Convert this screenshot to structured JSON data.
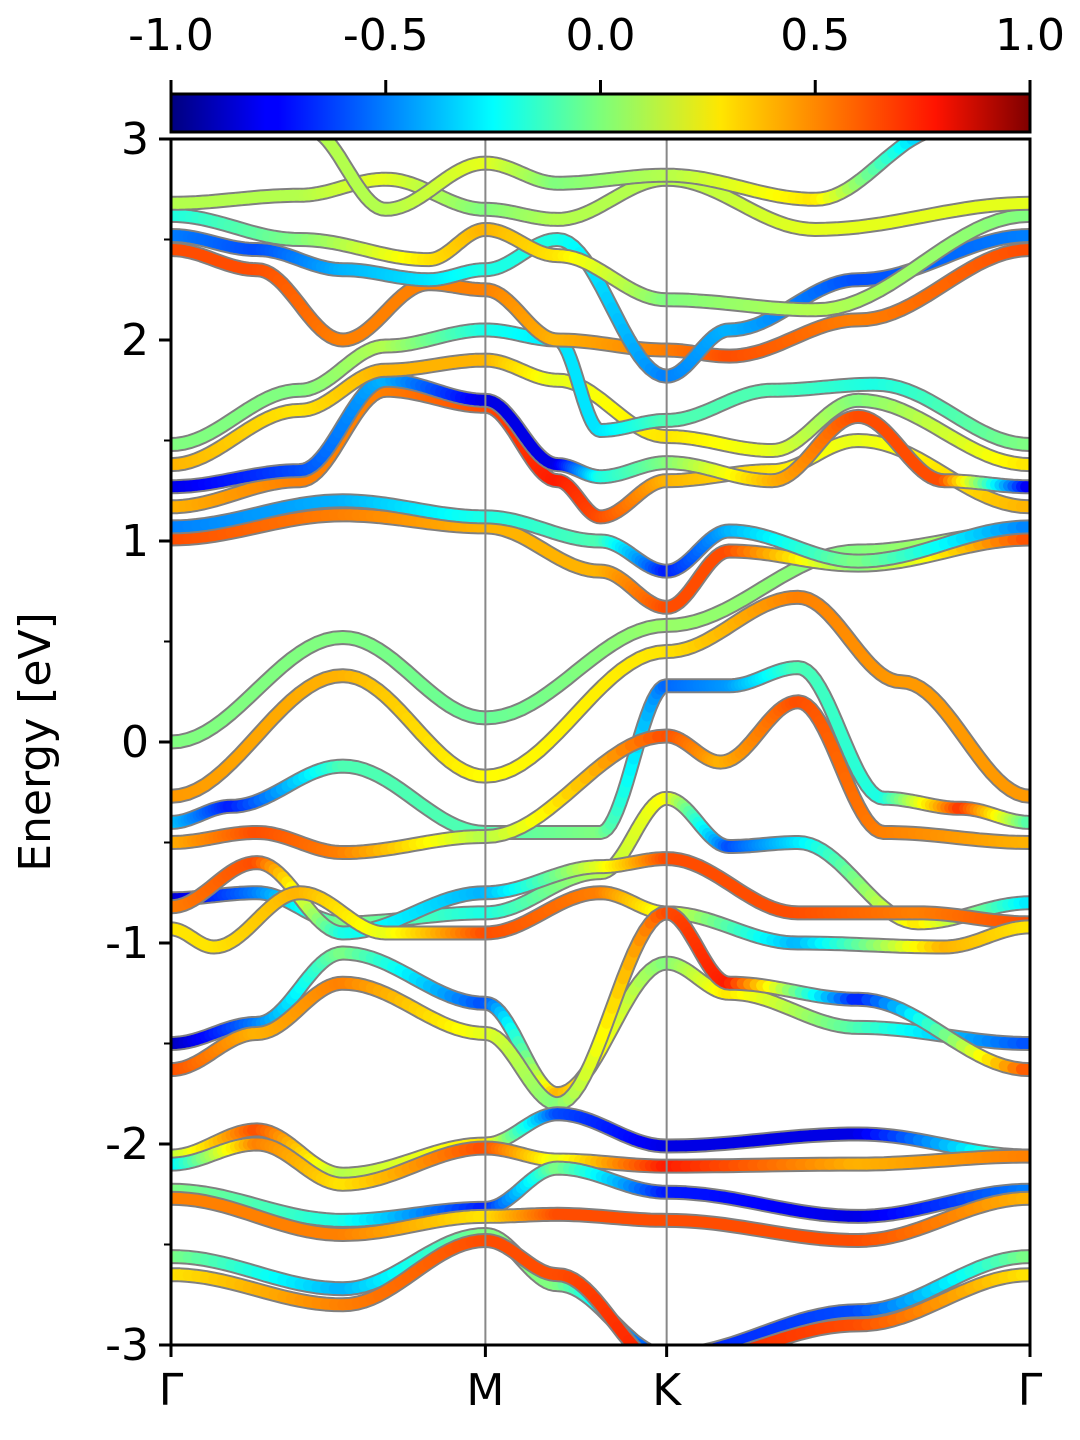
{
  "chart_data": {
    "type": "line",
    "title": "",
    "xlabel": "",
    "ylabel": "Energy [eV]",
    "ylim": [
      -3,
      3
    ],
    "yticks": [
      "-3",
      "-2",
      "-1",
      "0",
      "1",
      "2",
      "3"
    ],
    "xticks": [
      {
        "label": "Γ",
        "x": 0.0
      },
      {
        "label": "M",
        "x": 0.366
      },
      {
        "label": "K",
        "x": 0.577
      },
      {
        "label": "Γ",
        "x": 1.0
      }
    ],
    "vlines_at": [
      0.366,
      0.577
    ],
    "colorbar": {
      "colormap": "jet",
      "range": [
        -1.0,
        1.0
      ],
      "ticks": [
        "-1.0",
        "-0.5",
        "0.0",
        "0.5",
        "1.0"
      ]
    },
    "series": [
      {
        "points": [
          [
            0,
            -0.0,
            0.0
          ],
          [
            0.2,
            0.52,
            0.0
          ],
          [
            0.366,
            0.12,
            -0.05
          ],
          [
            0.577,
            0.58,
            0.05
          ],
          [
            0.8,
            0.95,
            0.0
          ],
          [
            1,
            1.05,
            0.15
          ]
        ]
      },
      {
        "points": [
          [
            0,
            -0.27,
            0.45
          ],
          [
            0.2,
            0.33,
            0.4
          ],
          [
            0.366,
            -0.17,
            0.25
          ],
          [
            0.577,
            0.45,
            0.3
          ],
          [
            0.73,
            0.72,
            0.5
          ],
          [
            0.85,
            0.3,
            0.45
          ],
          [
            1,
            -0.27,
            0.45
          ]
        ]
      },
      {
        "points": [
          [
            0,
            -0.4,
            -0.35
          ],
          [
            0.07,
            -0.32,
            -0.7
          ],
          [
            0.2,
            -0.12,
            -0.1
          ],
          [
            0.366,
            -0.45,
            -0.1
          ],
          [
            0.5,
            -0.45,
            0.0
          ],
          [
            0.577,
            0.28,
            -0.55
          ],
          [
            0.65,
            0.28,
            -0.45
          ],
          [
            0.73,
            0.37,
            -0.1
          ],
          [
            0.83,
            -0.28,
            -0.2
          ],
          [
            0.92,
            -0.33,
            0.65
          ],
          [
            1,
            -0.4,
            -0.1
          ]
        ]
      },
      {
        "points": [
          [
            0,
            -0.5,
            0.4
          ],
          [
            0.1,
            -0.45,
            0.6
          ],
          [
            0.2,
            -0.55,
            0.5
          ],
          [
            0.366,
            -0.47,
            0.1
          ],
          [
            0.577,
            0.03,
            0.6
          ],
          [
            0.64,
            -0.1,
            0.4
          ],
          [
            0.73,
            0.2,
            0.6
          ],
          [
            0.83,
            -0.45,
            0.5
          ],
          [
            1,
            -0.5,
            0.4
          ]
        ]
      },
      {
        "points": [
          [
            0,
            -0.78,
            -0.85
          ],
          [
            0.1,
            -0.75,
            -0.5
          ],
          [
            0.2,
            -0.9,
            0.0
          ],
          [
            0.366,
            -0.85,
            -0.2
          ],
          [
            0.5,
            -0.65,
            0.1
          ],
          [
            0.577,
            -0.28,
            0.25
          ],
          [
            0.65,
            -0.52,
            -0.6
          ],
          [
            0.73,
            -0.5,
            -0.3
          ],
          [
            0.87,
            -0.9,
            0.3
          ],
          [
            1,
            -0.8,
            -0.3
          ]
        ]
      },
      {
        "points": [
          [
            0,
            -0.82,
            0.5
          ],
          [
            0.1,
            -0.6,
            0.6
          ],
          [
            0.2,
            -0.95,
            -0.2
          ],
          [
            0.366,
            -0.75,
            -0.4
          ],
          [
            0.5,
            -0.62,
            0.2
          ],
          [
            0.577,
            -0.58,
            0.6
          ],
          [
            0.73,
            -0.85,
            0.6
          ],
          [
            0.87,
            -0.85,
            0.5
          ],
          [
            1,
            -0.9,
            0.6
          ]
        ]
      },
      {
        "points": [
          [
            0,
            -0.93,
            0.3
          ],
          [
            0.05,
            -1.02,
            0.3
          ],
          [
            0.15,
            -0.75,
            0.4
          ],
          [
            0.25,
            -0.95,
            0.2
          ],
          [
            0.366,
            -0.95,
            0.6
          ],
          [
            0.5,
            -0.75,
            0.5
          ],
          [
            0.577,
            -0.85,
            0.2
          ],
          [
            0.73,
            -1.0,
            -0.4
          ],
          [
            0.9,
            -1.02,
            0.4
          ],
          [
            1,
            -0.92,
            0.3
          ]
        ]
      },
      {
        "points": [
          [
            0,
            -1.5,
            -0.9
          ],
          [
            0.1,
            -1.4,
            -0.5
          ],
          [
            0.2,
            -1.05,
            0.0
          ],
          [
            0.366,
            -1.3,
            -0.6
          ],
          [
            0.45,
            -1.75,
            0.4
          ],
          [
            0.577,
            -1.1,
            0.0
          ],
          [
            0.65,
            -1.25,
            0.3
          ],
          [
            0.8,
            -1.42,
            -0.1
          ],
          [
            1,
            -1.5,
            -0.6
          ]
        ]
      },
      {
        "points": [
          [
            0,
            -1.63,
            0.6
          ],
          [
            0.1,
            -1.45,
            0.4
          ],
          [
            0.2,
            -1.2,
            0.5
          ],
          [
            0.366,
            -1.45,
            0.2
          ],
          [
            0.45,
            -1.8,
            0.0
          ],
          [
            0.577,
            -0.85,
            0.6
          ],
          [
            0.65,
            -1.2,
            0.7
          ],
          [
            0.8,
            -1.28,
            -0.7
          ],
          [
            1,
            -1.63,
            0.6
          ]
        ]
      },
      {
        "points": [
          [
            0,
            -2.06,
            0.1
          ],
          [
            0.1,
            -1.93,
            0.6
          ],
          [
            0.2,
            -2.15,
            0.1
          ],
          [
            0.366,
            -2.0,
            0.3
          ],
          [
            0.45,
            -1.85,
            -0.6
          ],
          [
            0.577,
            -2.01,
            -0.8
          ],
          [
            0.8,
            -1.95,
            -0.8
          ],
          [
            1,
            -2.06,
            0.0
          ]
        ]
      },
      {
        "points": [
          [
            0,
            -2.1,
            -0.3
          ],
          [
            0.1,
            -2.0,
            0.5
          ],
          [
            0.2,
            -2.2,
            0.3
          ],
          [
            0.366,
            -2.02,
            0.6
          ],
          [
            0.45,
            -2.08,
            0.2
          ],
          [
            0.577,
            -2.11,
            0.7
          ],
          [
            0.8,
            -2.1,
            0.4
          ],
          [
            1,
            -2.06,
            0.5
          ]
        ]
      },
      {
        "points": [
          [
            0,
            -2.23,
            0.0
          ],
          [
            0.2,
            -2.38,
            -0.2
          ],
          [
            0.366,
            -2.32,
            -0.7
          ],
          [
            0.45,
            -2.12,
            0.0
          ],
          [
            0.577,
            -2.24,
            -0.7
          ],
          [
            0.8,
            -2.36,
            -0.8
          ],
          [
            1,
            -2.23,
            -0.5
          ]
        ]
      },
      {
        "points": [
          [
            0,
            -2.27,
            0.5
          ],
          [
            0.2,
            -2.45,
            0.5
          ],
          [
            0.366,
            -2.36,
            0.3
          ],
          [
            0.45,
            -2.35,
            0.6
          ],
          [
            0.577,
            -2.38,
            0.6
          ],
          [
            0.8,
            -2.48,
            0.6
          ],
          [
            1,
            -2.27,
            0.4
          ]
        ]
      },
      {
        "points": [
          [
            0,
            -2.56,
            0.0
          ],
          [
            0.2,
            -2.72,
            -0.4
          ],
          [
            0.366,
            -2.45,
            0.0
          ],
          [
            0.45,
            -2.7,
            0.0
          ],
          [
            0.577,
            -3.05,
            -0.7
          ],
          [
            0.8,
            -2.83,
            -0.6
          ],
          [
            1,
            -2.56,
            0.0
          ]
        ]
      },
      {
        "points": [
          [
            0,
            -2.65,
            0.3
          ],
          [
            0.2,
            -2.8,
            0.5
          ],
          [
            0.366,
            -2.48,
            0.6
          ],
          [
            0.45,
            -2.65,
            0.6
          ],
          [
            0.577,
            -3.1,
            0.7
          ],
          [
            0.8,
            -2.9,
            0.6
          ],
          [
            1,
            -2.65,
            0.3
          ]
        ]
      },
      {
        "points": [
          [
            0,
            1.01,
            0.6
          ],
          [
            0.2,
            1.13,
            0.5
          ],
          [
            0.366,
            1.07,
            0.4
          ],
          [
            0.5,
            0.85,
            0.4
          ],
          [
            0.577,
            0.67,
            0.6
          ],
          [
            0.65,
            0.95,
            0.6
          ],
          [
            0.8,
            0.88,
            0.0
          ],
          [
            1,
            1.01,
            0.6
          ]
        ]
      },
      {
        "points": [
          [
            0,
            1.07,
            -0.5
          ],
          [
            0.2,
            1.2,
            -0.4
          ],
          [
            0.366,
            1.12,
            -0.2
          ],
          [
            0.5,
            1.0,
            -0.1
          ],
          [
            0.577,
            0.85,
            -0.7
          ],
          [
            0.65,
            1.05,
            -0.4
          ],
          [
            0.8,
            0.9,
            0.0
          ],
          [
            1,
            1.07,
            -0.5
          ]
        ]
      },
      {
        "points": [
          [
            0,
            1.17,
            0.4
          ],
          [
            0.15,
            1.3,
            0.5
          ],
          [
            0.25,
            1.75,
            0.5
          ],
          [
            0.366,
            1.67,
            0.6
          ],
          [
            0.45,
            1.3,
            0.7
          ],
          [
            0.5,
            1.12,
            0.6
          ],
          [
            0.577,
            1.3,
            0.4
          ],
          [
            0.7,
            1.35,
            0.3
          ],
          [
            0.8,
            1.5,
            0.2
          ],
          [
            1,
            1.17,
            0.4
          ]
        ]
      },
      {
        "points": [
          [
            0,
            1.27,
            -0.8
          ],
          [
            0.15,
            1.35,
            -0.6
          ],
          [
            0.25,
            1.8,
            -0.4
          ],
          [
            0.366,
            1.7,
            -0.8
          ],
          [
            0.45,
            1.38,
            -0.8
          ],
          [
            0.5,
            1.32,
            -0.2
          ],
          [
            0.577,
            1.39,
            0.0
          ],
          [
            0.7,
            1.3,
            0.4
          ],
          [
            0.8,
            1.62,
            0.6
          ],
          [
            0.9,
            1.3,
            0.6
          ],
          [
            1,
            1.27,
            -0.8
          ]
        ]
      },
      {
        "points": [
          [
            0,
            1.38,
            0.4
          ],
          [
            0.15,
            1.65,
            0.3
          ],
          [
            0.25,
            1.85,
            0.4
          ],
          [
            0.366,
            1.9,
            0.4
          ],
          [
            0.45,
            1.8,
            0.2
          ],
          [
            0.577,
            1.52,
            0.3
          ],
          [
            0.7,
            1.45,
            0.2
          ],
          [
            0.8,
            1.7,
            0.0
          ],
          [
            1,
            1.38,
            0.3
          ]
        ]
      },
      {
        "points": [
          [
            0,
            1.48,
            0.0
          ],
          [
            0.15,
            1.75,
            0.0
          ],
          [
            0.25,
            1.97,
            0.1
          ],
          [
            0.366,
            2.05,
            -0.2
          ],
          [
            0.45,
            2.0,
            -0.3
          ],
          [
            0.5,
            1.55,
            -0.3
          ],
          [
            0.577,
            1.6,
            -0.1
          ],
          [
            0.7,
            1.75,
            -0.1
          ],
          [
            0.82,
            1.78,
            -0.2
          ],
          [
            1,
            1.48,
            0.0
          ]
        ]
      },
      {
        "points": [
          [
            0,
            2.45,
            0.6
          ],
          [
            0.1,
            2.35,
            0.6
          ],
          [
            0.2,
            2.0,
            0.5
          ],
          [
            0.3,
            2.28,
            0.5
          ],
          [
            0.366,
            2.25,
            0.5
          ],
          [
            0.45,
            2.0,
            0.4
          ],
          [
            0.577,
            1.95,
            0.5
          ],
          [
            0.65,
            1.92,
            0.6
          ],
          [
            0.8,
            2.1,
            0.5
          ],
          [
            1,
            2.45,
            0.6
          ]
        ]
      },
      {
        "points": [
          [
            0,
            2.52,
            -0.5
          ],
          [
            0.1,
            2.45,
            -0.6
          ],
          [
            0.2,
            2.35,
            -0.4
          ],
          [
            0.3,
            2.3,
            -0.3
          ],
          [
            0.366,
            2.35,
            -0.2
          ],
          [
            0.45,
            2.5,
            -0.2
          ],
          [
            0.577,
            1.82,
            -0.5
          ],
          [
            0.65,
            2.05,
            -0.4
          ],
          [
            0.8,
            2.3,
            -0.6
          ],
          [
            1,
            2.52,
            -0.5
          ]
        ]
      },
      {
        "points": [
          [
            0,
            2.62,
            -0.2
          ],
          [
            0.15,
            2.5,
            0.0
          ],
          [
            0.3,
            2.4,
            0.3
          ],
          [
            0.366,
            2.55,
            0.4
          ],
          [
            0.45,
            2.42,
            0.3
          ],
          [
            0.577,
            2.2,
            0.0
          ],
          [
            0.75,
            2.15,
            0.1
          ],
          [
            1,
            2.62,
            0.0
          ]
        ]
      },
      {
        "points": [
          [
            0,
            2.68,
            0.1
          ],
          [
            0.15,
            2.72,
            0.1
          ],
          [
            0.25,
            2.8,
            0.2
          ],
          [
            0.366,
            2.65,
            0.0
          ],
          [
            0.45,
            2.6,
            0.1
          ],
          [
            0.577,
            2.8,
            0.1
          ],
          [
            0.75,
            2.55,
            0.2
          ],
          [
            1,
            2.68,
            0.2
          ]
        ]
      },
      {
        "points": [
          [
            0.16,
            3.05,
            0.1
          ],
          [
            0.25,
            2.65,
            0.1
          ],
          [
            0.366,
            2.88,
            0.2
          ],
          [
            0.45,
            2.78,
            0.0
          ],
          [
            0.577,
            2.82,
            0.1
          ],
          [
            0.75,
            2.7,
            0.3
          ],
          [
            0.9,
            3.05,
            -0.5
          ]
        ]
      }
    ]
  }
}
